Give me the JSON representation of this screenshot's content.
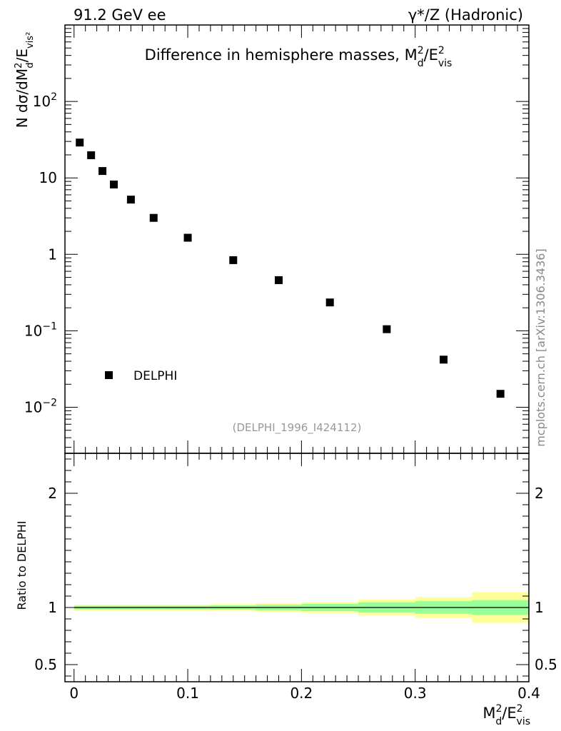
{
  "header": {
    "left_label": "91.2 GeV ee",
    "right_label": "γ*/Z (Hadronic)"
  },
  "watermark": "mcplots.cern.ch [arXiv:1306.3436]",
  "chart_data": [
    {
      "type": "scatter",
      "title": "Difference in hemisphere masses, M_d^2/E_vis^2",
      "title_parts": {
        "main": "Difference in hemisphere masses, M",
        "sup": "2",
        "sub": "d",
        "mid": "/E",
        "sup2": "2",
        "sub2": "vis"
      },
      "ylabel": "N  dσ/dM_d^2/E_vis^2",
      "ylabel_parts": {
        "main": "N  dσ/dM",
        "sup": "2",
        "sub": "d",
        "mid": "/E",
        "sub2": "vis²"
      },
      "yscale": "log",
      "xlim": [
        -0.008,
        0.4
      ],
      "ylim": [
        0.0025,
        1000
      ],
      "y_ticks": [
        {
          "value": 100,
          "base": "10",
          "exp": "2"
        },
        {
          "value": 10,
          "base": "10",
          "exp": ""
        },
        {
          "value": 1,
          "base": "1",
          "exp": ""
        },
        {
          "value": 0.1,
          "base": "10",
          "exp": "−1"
        },
        {
          "value": 0.01,
          "base": "10",
          "exp": "−2"
        }
      ],
      "legend": {
        "entries": [
          "DELPHI"
        ],
        "position": "lower-left"
      },
      "reference_label": "(DELPHI_1996_I424112)",
      "series": [
        {
          "name": "DELPHI",
          "x": [
            0.005,
            0.015,
            0.025,
            0.035,
            0.05,
            0.07,
            0.1,
            0.14,
            0.18,
            0.225,
            0.275,
            0.325,
            0.375
          ],
          "y": [
            29,
            19.8,
            12.3,
            8.2,
            5.2,
            3.0,
            1.65,
            0.84,
            0.46,
            0.235,
            0.105,
            0.042,
            0.015
          ]
        }
      ]
    },
    {
      "type": "area",
      "ylabel": "Ratio to DELPHI",
      "xlabel": "M_d^2/E_vis^2",
      "xlabel_parts": {
        "main": "M",
        "sup": "2",
        "sub": "d",
        "mid": "/E",
        "sup2": "2",
        "sub2": "vis"
      },
      "xlim": [
        -0.008,
        0.4
      ],
      "ylim": [
        0.35,
        2.35
      ],
      "x_ticks": [
        {
          "value": 0,
          "label": "0"
        },
        {
          "value": 0.1,
          "label": "0.1"
        },
        {
          "value": 0.2,
          "label": "0.2"
        },
        {
          "value": 0.3,
          "label": "0.3"
        },
        {
          "value": 0.4,
          "label": "0.4"
        }
      ],
      "y_ticks": [
        {
          "value": 2,
          "label": "2"
        },
        {
          "value": 1,
          "label": "1"
        },
        {
          "value": 0.5,
          "label": "0.5"
        }
      ],
      "reference_line": 1,
      "bands": [
        {
          "x": [
            0.0,
            0.01
          ],
          "stat": [
            0.985,
            1.015
          ],
          "total": [
            0.975,
            1.025
          ]
        },
        {
          "x": [
            0.01,
            0.02
          ],
          "stat": [
            0.985,
            1.015
          ],
          "total": [
            0.975,
            1.025
          ]
        },
        {
          "x": [
            0.02,
            0.03
          ],
          "stat": [
            0.985,
            1.015
          ],
          "total": [
            0.975,
            1.025
          ]
        },
        {
          "x": [
            0.03,
            0.04
          ],
          "stat": [
            0.985,
            1.015
          ],
          "total": [
            0.975,
            1.025
          ]
        },
        {
          "x": [
            0.04,
            0.06
          ],
          "stat": [
            0.985,
            1.015
          ],
          "total": [
            0.975,
            1.025
          ]
        },
        {
          "x": [
            0.06,
            0.08
          ],
          "stat": [
            0.985,
            1.015
          ],
          "total": [
            0.975,
            1.025
          ]
        },
        {
          "x": [
            0.08,
            0.12
          ],
          "stat": [
            0.985,
            1.015
          ],
          "total": [
            0.975,
            1.025
          ]
        },
        {
          "x": [
            0.12,
            0.16
          ],
          "stat": [
            0.982,
            1.018
          ],
          "total": [
            0.97,
            1.03
          ]
        },
        {
          "x": [
            0.16,
            0.2
          ],
          "stat": [
            0.976,
            1.024
          ],
          "total": [
            0.962,
            1.038
          ]
        },
        {
          "x": [
            0.2,
            0.25
          ],
          "stat": [
            0.968,
            1.032
          ],
          "total": [
            0.952,
            1.048
          ]
        },
        {
          "x": [
            0.25,
            0.3
          ],
          "stat": [
            0.955,
            1.045
          ],
          "total": [
            0.93,
            1.07
          ]
        },
        {
          "x": [
            0.3,
            0.35
          ],
          "stat": [
            0.945,
            1.055
          ],
          "total": [
            0.91,
            1.09
          ]
        },
        {
          "x": [
            0.35,
            0.4
          ],
          "stat": [
            0.935,
            1.065
          ],
          "total": [
            0.865,
            1.135
          ]
        }
      ]
    }
  ]
}
